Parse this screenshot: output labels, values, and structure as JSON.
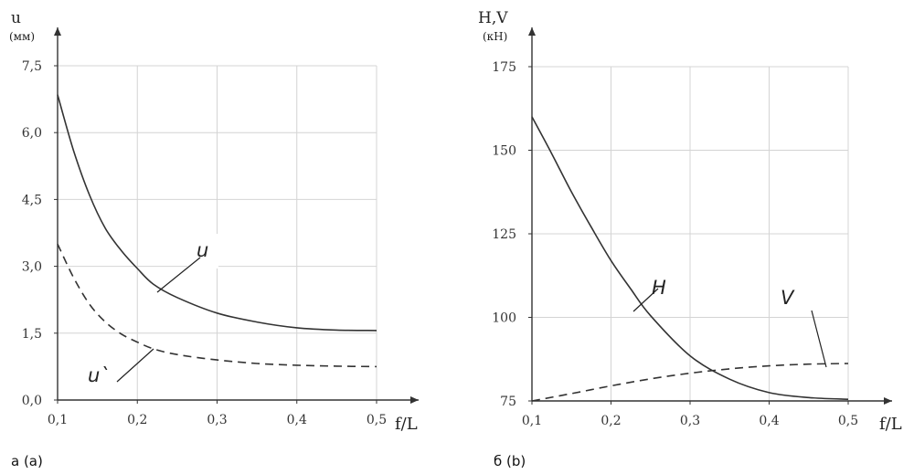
{
  "chart_data": [
    {
      "type": "line",
      "caption": "а (a)",
      "ylabel": "u",
      "yunit": "(мм)",
      "xlabel": "f/L",
      "xlim": [
        0.1,
        0.5
      ],
      "ylim": [
        0.0,
        7.5
      ],
      "x_ticks": [
        0.1,
        0.2,
        0.3,
        0.4,
        0.5
      ],
      "x_tick_labels": [
        "0,1",
        "0,2",
        "0,3",
        "0,4",
        "0,5"
      ],
      "y_ticks": [
        0.0,
        1.5,
        3.0,
        4.5,
        6.0,
        7.5
      ],
      "y_tick_labels": [
        "0,0",
        "1,5",
        "3,0",
        "4,5",
        "6,0",
        "7,5"
      ],
      "grid": true,
      "series": [
        {
          "name": "u",
          "style": "solid",
          "x": [
            0.1,
            0.12,
            0.14,
            0.16,
            0.18,
            0.2,
            0.22,
            0.25,
            0.3,
            0.35,
            0.4,
            0.45,
            0.5
          ],
          "y": [
            6.85,
            5.6,
            4.6,
            3.85,
            3.35,
            2.95,
            2.6,
            2.3,
            1.95,
            1.75,
            1.62,
            1.57,
            1.56
          ]
        },
        {
          "name": "u`",
          "style": "dashed",
          "x": [
            0.1,
            0.12,
            0.14,
            0.16,
            0.18,
            0.2,
            0.22,
            0.25,
            0.3,
            0.35,
            0.4,
            0.45,
            0.5
          ],
          "y": [
            3.5,
            2.75,
            2.15,
            1.75,
            1.48,
            1.3,
            1.15,
            1.02,
            0.9,
            0.82,
            0.78,
            0.76,
            0.75
          ]
        }
      ]
    },
    {
      "type": "line",
      "caption": "б (b)",
      "ylabel": "H,V",
      "yunit": "(кН)",
      "xlabel": "f/L",
      "xlim": [
        0.1,
        0.5
      ],
      "ylim": [
        75,
        175
      ],
      "x_ticks": [
        0.1,
        0.2,
        0.3,
        0.4,
        0.5
      ],
      "x_tick_labels": [
        "0,1",
        "0,2",
        "0,3",
        "0,4",
        "0,5"
      ],
      "y_ticks": [
        75,
        100,
        125,
        150,
        175
      ],
      "y_tick_labels": [
        "75",
        "100",
        "125",
        "150",
        "175"
      ],
      "grid": true,
      "series": [
        {
          "name": "H",
          "style": "solid",
          "x": [
            0.1,
            0.125,
            0.15,
            0.175,
            0.2,
            0.225,
            0.25,
            0.3,
            0.35,
            0.4,
            0.45,
            0.5
          ],
          "y": [
            160,
            149,
            137.5,
            127,
            117,
            108.5,
            100.5,
            88.5,
            81.5,
            77.5,
            76,
            75.5
          ]
        },
        {
          "name": "V",
          "style": "dashed",
          "x": [
            0.1,
            0.15,
            0.2,
            0.25,
            0.3,
            0.35,
            0.4,
            0.45,
            0.5
          ],
          "y": [
            75,
            77.2,
            79.5,
            81.6,
            83.3,
            84.6,
            85.5,
            86,
            86.2
          ]
        }
      ]
    }
  ]
}
